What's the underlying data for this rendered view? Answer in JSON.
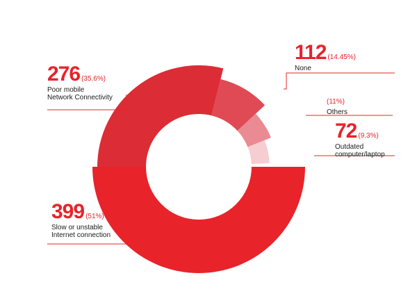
{
  "chart_data": {
    "type": "pie",
    "style": "donut",
    "slices": [
      {
        "label": "Slow or unstable\nInternet connection",
        "value": 399,
        "percent": "(51%)",
        "color": "#e8232a"
      },
      {
        "label": "Poor mobile\nNetwork Connectivity",
        "value": 276,
        "percent": "(35.6%)",
        "color": "#dc2c35"
      },
      {
        "label": "None",
        "value": 112,
        "percent": "(14.45%)",
        "color": "#df4a55"
      },
      {
        "label": "Others",
        "value": null,
        "percent": "(11%)",
        "color": "#ea8a92"
      },
      {
        "label": "Outdated\ncomputer/laptop",
        "value": 72,
        "percent": "(9.3%)",
        "color": "#f6cdd1"
      }
    ]
  }
}
